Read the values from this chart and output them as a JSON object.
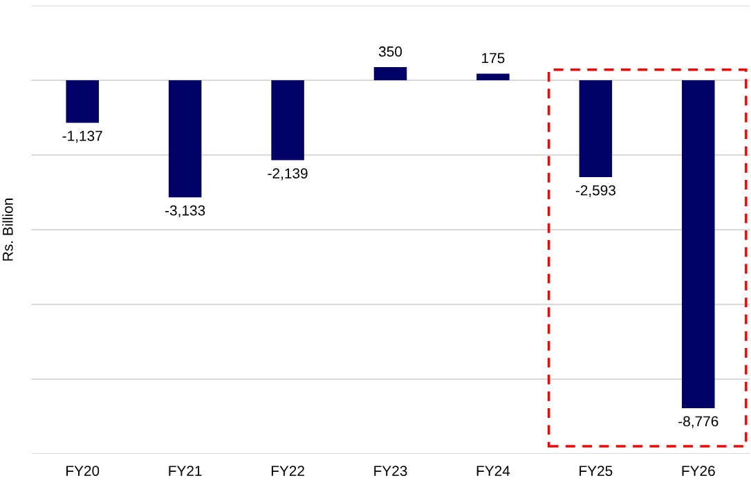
{
  "chart_data": {
    "type": "bar",
    "ylabel": "Rs. Billion",
    "categories": [
      "FY20",
      "FY21",
      "FY22",
      "FY23",
      "FY24",
      "FY25",
      "FY26"
    ],
    "values": [
      -1137,
      -3133,
      -2139,
      350,
      175,
      -2593,
      -8776
    ],
    "value_labels": [
      "-1,137",
      "-3,133",
      "-2,139",
      "350",
      "175",
      "-2,593",
      "-8,776"
    ],
    "color": "#000066",
    "ylim": [
      -10000,
      2000
    ],
    "yticks": [
      {
        "value": -10000,
        "label": null
      },
      {
        "value": -8000,
        "label": null
      },
      {
        "value": -6000,
        "label": null
      },
      {
        "value": -4000,
        "label": null
      },
      {
        "value": -2000,
        "label": null
      },
      {
        "value": 0,
        "label": null
      },
      {
        "value": 2000,
        "label": null
      }
    ],
    "grid": "y"
  }
}
